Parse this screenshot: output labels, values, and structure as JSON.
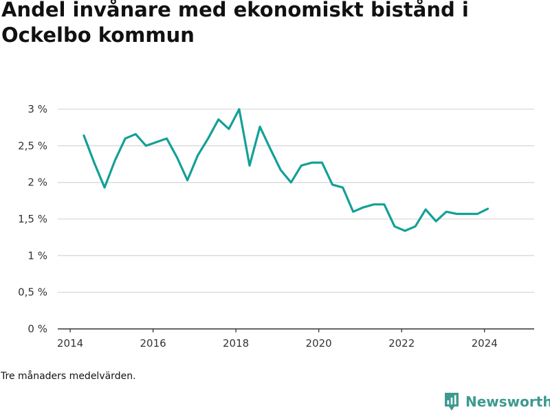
{
  "title": "Andel invånare med ekonomiskt bistånd i Ockelbo kommun",
  "footnote": "Tre månaders medelvärden.",
  "brand": {
    "name": "Newsworthy",
    "icon": "newsworthy-logo-icon",
    "color": "#3d9a8f"
  },
  "chart_data": {
    "type": "line",
    "title": "Andel invånare med ekonomiskt bistånd i Ockelbo kommun",
    "xlabel": "",
    "ylabel": "",
    "xlim": [
      2013.7,
      2025.2
    ],
    "ylim": [
      0,
      3
    ],
    "x_ticks": [
      2014,
      2016,
      2018,
      2020,
      2022,
      2024
    ],
    "x_tick_labels": [
      "2014",
      "2016",
      "2018",
      "2020",
      "2022",
      "2024"
    ],
    "y_ticks": [
      0,
      0.5,
      1,
      1.5,
      2,
      2.5,
      3
    ],
    "y_tick_labels": [
      "0 %",
      "0,5 %",
      "1 %",
      "1,5 %",
      "2 %",
      "2,5 %",
      "3 %"
    ],
    "grid": true,
    "line_color": "#13a097",
    "series": [
      {
        "x": [
          2014.33,
          2014.58,
          2014.83,
          2015.08,
          2015.33,
          2015.58,
          2015.83,
          2016.08,
          2016.33,
          2016.58,
          2016.83,
          2017.08,
          2017.33,
          2017.58,
          2017.83,
          2018.08,
          2018.33,
          2018.58,
          2018.83,
          2019.08,
          2019.33,
          2019.58,
          2019.83,
          2020.08,
          2020.33,
          2020.58,
          2020.83,
          2021.08,
          2021.33,
          2021.58,
          2021.83,
          2022.08,
          2022.33,
          2022.58,
          2022.83,
          2023.08,
          2023.33,
          2023.58,
          2023.83,
          2024.08
        ],
        "values": [
          2.64,
          2.27,
          1.93,
          2.3,
          2.6,
          2.66,
          2.5,
          2.55,
          2.6,
          2.34,
          2.03,
          2.37,
          2.6,
          2.86,
          2.73,
          3.0,
          2.23,
          2.76,
          2.46,
          2.17,
          2.0,
          2.23,
          2.27,
          2.27,
          1.97,
          1.93,
          1.6,
          1.66,
          1.7,
          1.7,
          1.4,
          1.34,
          1.4,
          1.63,
          1.47,
          1.6,
          1.57,
          1.57,
          1.57,
          1.64
        ]
      }
    ]
  }
}
